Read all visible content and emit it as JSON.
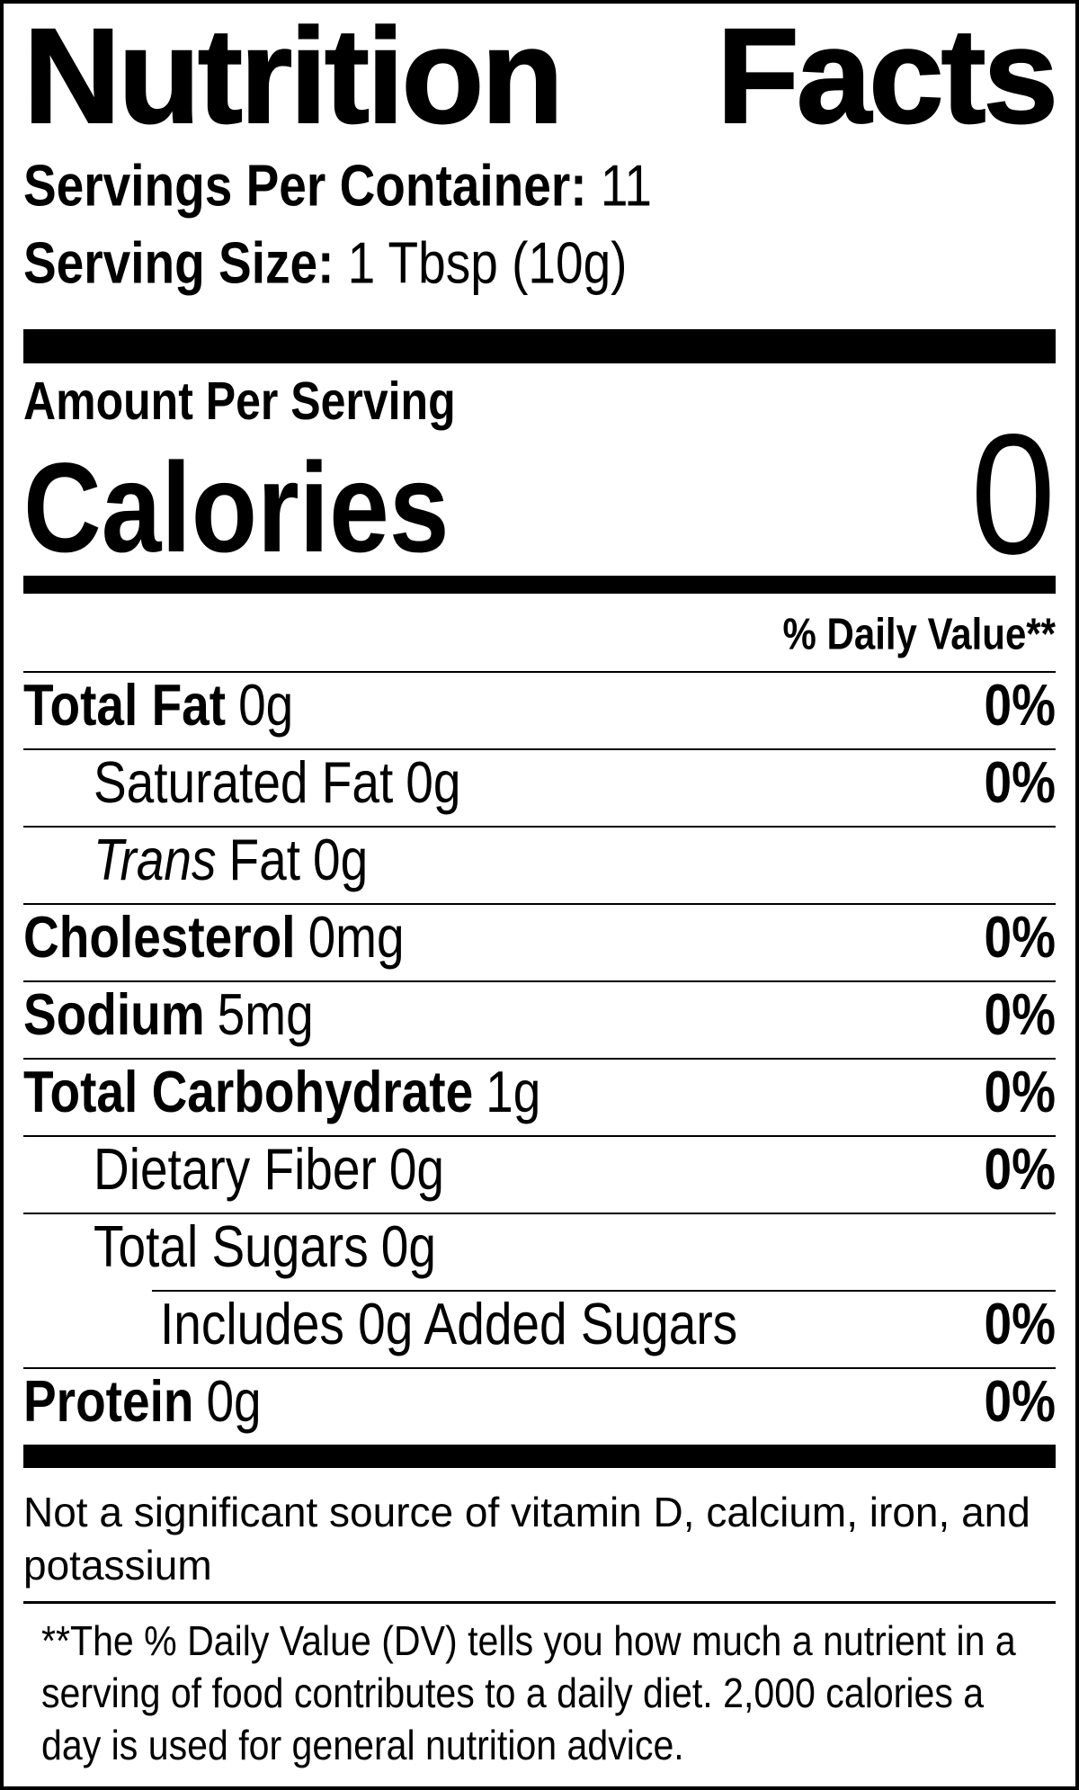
{
  "label": {
    "title": "Nutrition Facts",
    "servings_per_container": {
      "label": "Servings Per Container:",
      "value": "11"
    },
    "serving_size": {
      "label": "Serving Size:",
      "value": "1 Tbsp (10g)"
    },
    "amount_per_serving": "Amount Per Serving",
    "calories": {
      "label": "Calories",
      "value": "0"
    },
    "daily_value_header": "% Daily Value**",
    "rows": [
      {
        "name": "Total Fat",
        "amount": "0g",
        "dv": "0%",
        "bold": true,
        "indent": 0
      },
      {
        "name": "Saturated Fat",
        "amount": "0g",
        "dv": "0%",
        "bold": false,
        "indent": 1
      },
      {
        "italic": "Trans",
        "name": "Fat",
        "amount": "0g",
        "dv": "",
        "bold": false,
        "indent": 1
      },
      {
        "name": "Cholesterol",
        "amount": "0mg",
        "dv": "0%",
        "bold": true,
        "indent": 0
      },
      {
        "name": "Sodium",
        "amount": "5mg",
        "dv": "0%",
        "bold": true,
        "indent": 0
      },
      {
        "name": "Total Carbohydrate",
        "amount": "1g",
        "dv": "0%",
        "bold": true,
        "indent": 0
      },
      {
        "name": "Dietary Fiber",
        "amount": "0g",
        "dv": "0%",
        "bold": false,
        "indent": 1
      },
      {
        "name": "Total Sugars",
        "amount": "0g",
        "dv": "",
        "bold": false,
        "indent": 1,
        "no_bottom_line": true
      },
      {
        "name": "Includes 0g Added Sugars",
        "amount": "",
        "dv": "0%",
        "bold": false,
        "indent": 2,
        "rule_indent": true
      },
      {
        "name": "Protein",
        "amount": "0g",
        "dv": "0%",
        "bold": true,
        "indent": 0,
        "no_bottom_line": true
      }
    ],
    "footnotes": {
      "not_significant": "Not a significant source of vitamin D, calcium, iron, and potassium",
      "daily_value_note": "**The % Daily Value (DV) tells you how much a nutrient in a serving of food contributes to a daily diet. 2,000 calories a day is used for general nutrition advice."
    },
    "colors": {
      "ink": "#000000",
      "paper": "#ffffff"
    }
  }
}
